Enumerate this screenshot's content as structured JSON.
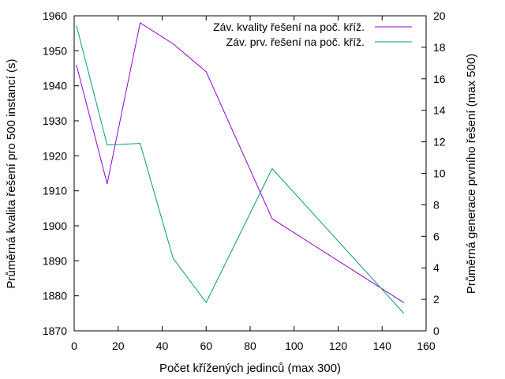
{
  "chart_data": {
    "type": "line",
    "xlabel": "Počet křížených jedinců (max 300)",
    "ylabel": "Průměrná kvalita řešení pro 500 instancí (s)",
    "y2label": "Průměrná generace prvního řešení (max 500)",
    "xlim": [
      0,
      160
    ],
    "ylim": [
      1870,
      1960
    ],
    "y2lim": [
      0,
      20
    ],
    "xticks": [
      "0",
      "20",
      "40",
      "60",
      "80",
      "100",
      "120",
      "140",
      "160"
    ],
    "yticks": [
      "1870",
      "1880",
      "1890",
      "1900",
      "1910",
      "1920",
      "1930",
      "1940",
      "1950",
      "1960"
    ],
    "y2ticks": [
      "0",
      "2",
      "4",
      "6",
      "8",
      "10",
      "12",
      "14",
      "16",
      "18",
      "20"
    ],
    "grid": false,
    "legend_position": "top-right",
    "series": [
      {
        "name": "Záv. kvality řešení na poč. kříž.",
        "axis": "left",
        "color": "#9400d3",
        "x": [
          1,
          15,
          30,
          45,
          60,
          90,
          150
        ],
        "y": [
          1946,
          1912,
          1958,
          1952,
          1944,
          1902,
          1878
        ]
      },
      {
        "name": "Záv. prv. řešení na poč. kříž.",
        "axis": "right",
        "color": "#009e73",
        "x": [
          1,
          15,
          30,
          45,
          60,
          90,
          150
        ],
        "y": [
          19.4,
          11.8,
          11.9,
          4.6,
          1.8,
          10.3,
          1.1
        ]
      }
    ]
  }
}
